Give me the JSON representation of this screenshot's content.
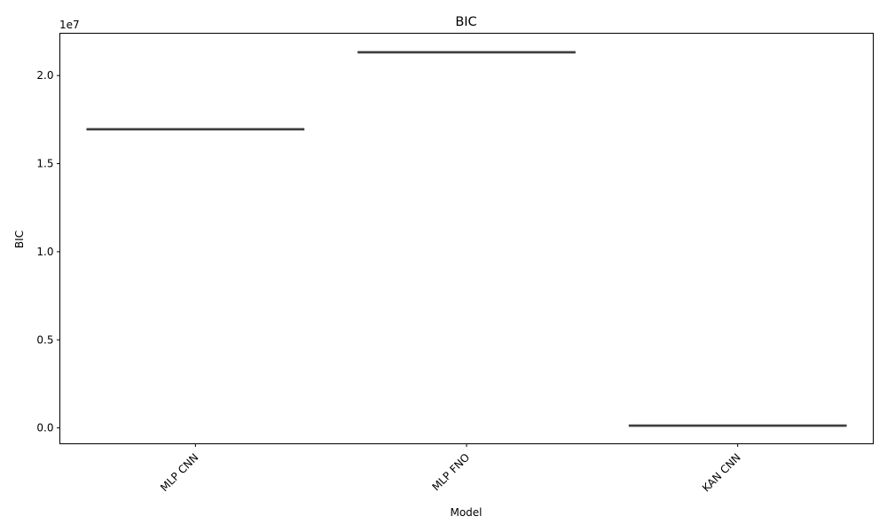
{
  "chart_data": {
    "type": "box",
    "title": "BIC",
    "xlabel": "Model",
    "ylabel": "BIC",
    "offset_label": "1e7",
    "categories": [
      "MLP CNN",
      "MLP FNO",
      "KAN CNN"
    ],
    "values": [
      16950000,
      21320000,
      130000
    ],
    "yticks": [
      0.0,
      0.5,
      1.0,
      1.5,
      2.0
    ],
    "ytick_labels": [
      "0.0",
      "0.5",
      "1.0",
      "1.5",
      "2.0"
    ],
    "ylim": [
      -0.09,
      2.24
    ],
    "y_scale_factor": 10000000,
    "line_color": "#3f3f3f",
    "grid": false,
    "xtick_rotation": 45
  }
}
